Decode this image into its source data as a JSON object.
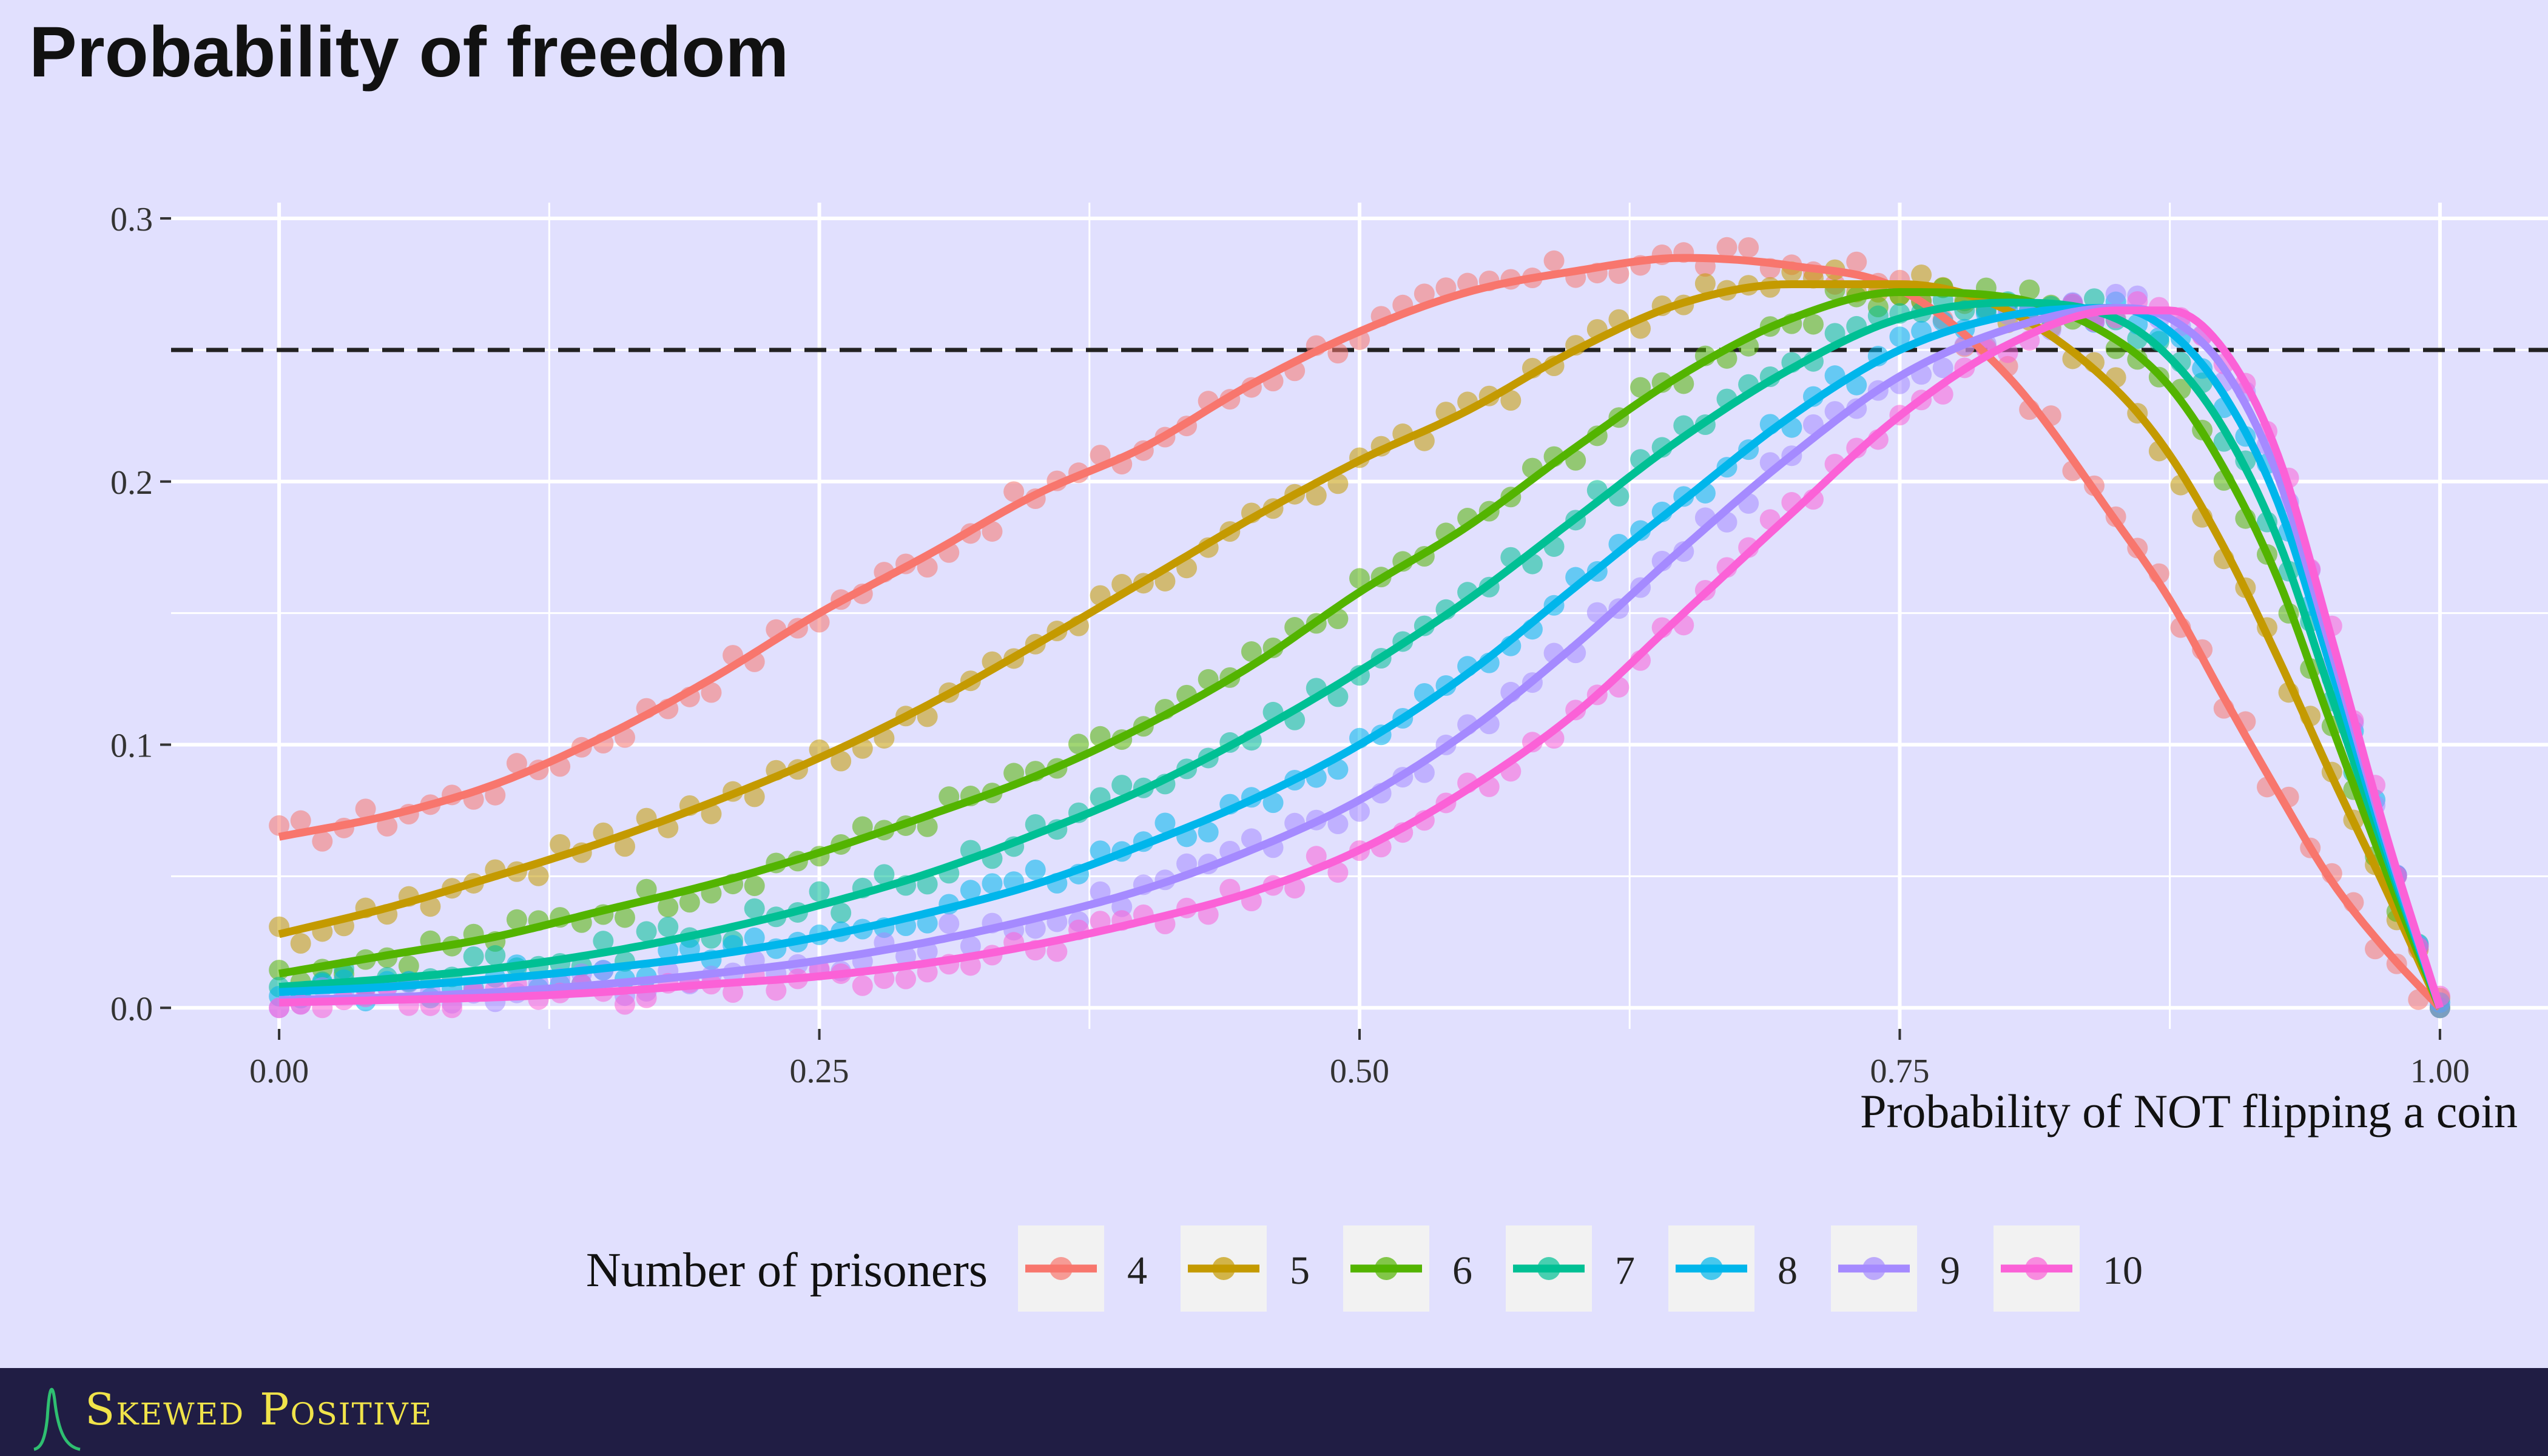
{
  "title": "Probability of freedom",
  "brand": {
    "name": "Skewed Positive",
    "logo_icon": "skewed-curve-logo-icon"
  },
  "colors": {
    "background": "#e1e0fe",
    "gridline": "#ffffff",
    "footer": "#201d44",
    "brand_text": "#f0e34a",
    "reference_line": "#222222"
  },
  "chart_data": {
    "type": "line",
    "title": "Probability of freedom",
    "xlabel": "Probability of NOT flipping a coin",
    "ylabel": "",
    "xlim": [
      -0.05,
      1.05
    ],
    "ylim": [
      -0.008,
      0.306
    ],
    "x_ticks": [
      0,
      0.25,
      0.5,
      0.75,
      1
    ],
    "x_tick_labels": [
      "0.00",
      "0.25",
      "0.50",
      "0.75",
      "1.00"
    ],
    "y_ticks": [
      0,
      0.1,
      0.2,
      0.3
    ],
    "y_tick_labels": [
      "0.0",
      "0.1",
      "0.2",
      "0.3"
    ],
    "grid": true,
    "reference_line": {
      "y": 0.25,
      "style": "dashed"
    },
    "legend": {
      "title": "Number of prisoners",
      "placement": "bottom"
    },
    "x": [
      0,
      0.05,
      0.1,
      0.15,
      0.2,
      0.25,
      0.3,
      0.35,
      0.4,
      0.45,
      0.5,
      0.55,
      0.6,
      0.65,
      0.7,
      0.75,
      0.8,
      0.85,
      0.875,
      0.9,
      0.925,
      0.95,
      0.975,
      1.0
    ],
    "series": [
      {
        "name": "4",
        "color": "#f8766d",
        "values": [
          0.065,
          0.073,
          0.085,
          0.103,
          0.125,
          0.15,
          0.172,
          0.195,
          0.213,
          0.237,
          0.257,
          0.272,
          0.28,
          0.285,
          0.282,
          0.273,
          0.24,
          0.185,
          0.155,
          0.118,
          0.082,
          0.048,
          0.022,
          0.0
        ]
      },
      {
        "name": "5",
        "color": "#c49a00",
        "values": [
          0.028,
          0.038,
          0.05,
          0.063,
          0.078,
          0.095,
          0.115,
          0.138,
          0.162,
          0.186,
          0.208,
          0.227,
          0.25,
          0.268,
          0.275,
          0.275,
          0.265,
          0.235,
          0.21,
          0.175,
          0.133,
          0.088,
          0.045,
          0.0
        ]
      },
      {
        "name": "6",
        "color": "#53b400",
        "values": [
          0.013,
          0.02,
          0.027,
          0.037,
          0.047,
          0.059,
          0.073,
          0.088,
          0.107,
          0.13,
          0.158,
          0.183,
          0.213,
          0.241,
          0.262,
          0.272,
          0.27,
          0.254,
          0.236,
          0.205,
          0.163,
          0.107,
          0.052,
          0.0
        ]
      },
      {
        "name": "7",
        "color": "#00c094",
        "values": [
          0.008,
          0.011,
          0.015,
          0.021,
          0.029,
          0.039,
          0.051,
          0.066,
          0.083,
          0.104,
          0.128,
          0.155,
          0.186,
          0.217,
          0.243,
          0.262,
          0.268,
          0.262,
          0.247,
          0.22,
          0.178,
          0.118,
          0.058,
          0.0
        ]
      },
      {
        "name": "8",
        "color": "#00b6eb",
        "values": [
          0.006,
          0.008,
          0.011,
          0.015,
          0.02,
          0.027,
          0.036,
          0.047,
          0.062,
          0.079,
          0.1,
          0.127,
          0.16,
          0.193,
          0.225,
          0.25,
          0.263,
          0.266,
          0.257,
          0.233,
          0.192,
          0.128,
          0.061,
          0.0
        ]
      },
      {
        "name": "9",
        "color": "#a58aff",
        "values": [
          0.003,
          0.004,
          0.006,
          0.009,
          0.013,
          0.018,
          0.025,
          0.034,
          0.045,
          0.06,
          0.079,
          0.105,
          0.138,
          0.175,
          0.21,
          0.24,
          0.258,
          0.266,
          0.262,
          0.243,
          0.202,
          0.135,
          0.064,
          0.0
        ]
      },
      {
        "name": "10",
        "color": "#fb61d7",
        "values": [
          0.002,
          0.003,
          0.004,
          0.006,
          0.009,
          0.012,
          0.017,
          0.024,
          0.033,
          0.044,
          0.06,
          0.083,
          0.112,
          0.15,
          0.188,
          0.225,
          0.252,
          0.265,
          0.265,
          0.25,
          0.21,
          0.14,
          0.066,
          0.0
        ]
      }
    ]
  }
}
